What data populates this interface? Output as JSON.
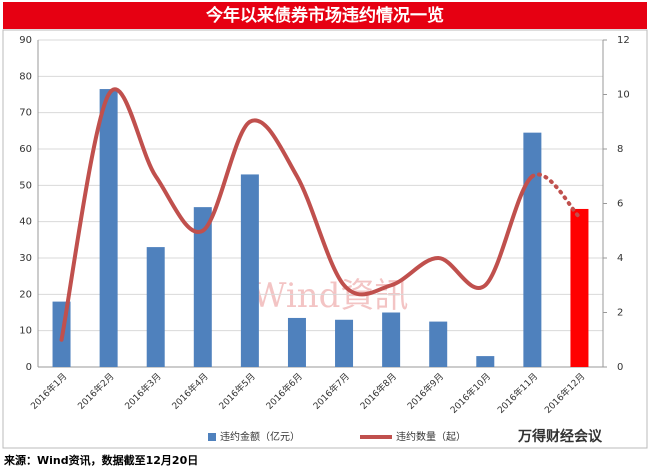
{
  "chart_data": {
    "type": "bar_line",
    "title": "今年以来债券市场违约情况一览",
    "categories": [
      "2016年1月",
      "2016年2月",
      "2016年3月",
      "2016年4月",
      "2016年5月",
      "2016年6月",
      "2016年7月",
      "2016年8月",
      "2016年9月",
      "2016年10月",
      "2016年11月",
      "2016年12月"
    ],
    "series": [
      {
        "name": "违约金额（亿元）",
        "type": "bar",
        "color": "#4f81bd",
        "highlight_last_color": "#ff0000",
        "values": [
          18,
          76.5,
          33,
          44,
          53,
          13.5,
          13,
          15,
          12.5,
          3,
          64.5,
          43.5
        ]
      },
      {
        "name": "违约数量（起）",
        "type": "line",
        "axis": "y2",
        "color": "#c0504d",
        "last_segment_dashed": true,
        "values": [
          1,
          10,
          7,
          5,
          9,
          7,
          3,
          3,
          4,
          3,
          7,
          5.5
        ]
      }
    ],
    "ylim": [
      0,
      90
    ],
    "yticks": [
      0,
      10,
      20,
      30,
      40,
      50,
      60,
      70,
      80,
      90
    ],
    "y2lim": [
      0,
      12
    ],
    "y2ticks": [
      0,
      2,
      4,
      6,
      8,
      10,
      12
    ],
    "grid": true,
    "legend": "bottom",
    "watermark": "Wind資訊",
    "brand": "万得财经会议",
    "source": "来源：Wind资讯，数据截至12月20日"
  }
}
